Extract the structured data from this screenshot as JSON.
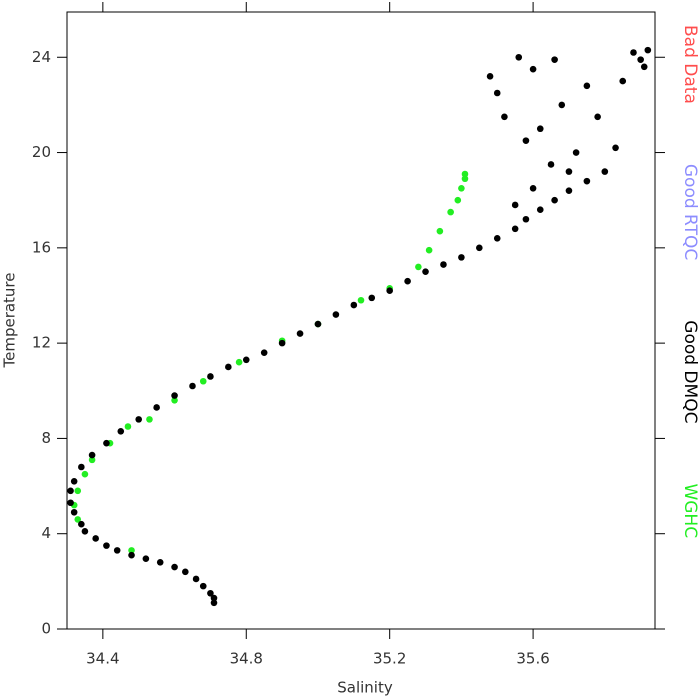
{
  "chart_data": {
    "type": "scatter",
    "x_label": "Salinity",
    "y_label": "Temperature",
    "xlim": [
      34.3,
      35.94
    ],
    "ylim": [
      0,
      25.9
    ],
    "xticks": [
      34.4,
      34.8,
      35.2,
      35.6
    ],
    "yticks": [
      0,
      4,
      8,
      12,
      16,
      20,
      24
    ],
    "legend": "right",
    "series": [
      {
        "name": "Bad Data",
        "color": "#ff4d4d",
        "x": [],
        "y": []
      },
      {
        "name": "Good RTQC",
        "color": "#8c8cff",
        "x": [],
        "y": []
      },
      {
        "name": "Good DMQC",
        "color": "#000000",
        "x": [
          34.71,
          34.71,
          34.7,
          34.68,
          34.66,
          34.63,
          34.6,
          34.56,
          34.52,
          34.48,
          34.44,
          34.41,
          34.38,
          34.35,
          34.34,
          34.32,
          34.31,
          34.31,
          34.32,
          34.34,
          34.37,
          34.41,
          34.45,
          34.5,
          34.55,
          34.6,
          34.65,
          34.7,
          34.75,
          34.8,
          34.85,
          34.9,
          34.95,
          35.0,
          35.05,
          35.1,
          35.15,
          35.2,
          35.25,
          35.3,
          35.35,
          35.4,
          35.45,
          35.5,
          35.55,
          35.58,
          35.62,
          35.66,
          35.7,
          35.75,
          35.8,
          35.6,
          35.55,
          35.65,
          35.58,
          35.52,
          35.48,
          35.5,
          35.62,
          35.68,
          35.72,
          35.78,
          35.83,
          35.66,
          35.6,
          35.56,
          35.7,
          35.85,
          35.9,
          35.92,
          35.88,
          35.91,
          35.75
        ],
        "y": [
          1.1,
          1.3,
          1.5,
          1.8,
          2.1,
          2.4,
          2.6,
          2.8,
          2.95,
          3.1,
          3.3,
          3.5,
          3.8,
          4.1,
          4.4,
          4.9,
          5.3,
          5.8,
          6.2,
          6.8,
          7.3,
          7.8,
          8.3,
          8.8,
          9.3,
          9.8,
          10.2,
          10.6,
          11.0,
          11.3,
          11.6,
          12.0,
          12.4,
          12.8,
          13.2,
          13.6,
          13.9,
          14.2,
          14.6,
          15.0,
          15.3,
          15.6,
          16.0,
          16.4,
          16.8,
          17.2,
          17.6,
          18.0,
          18.4,
          18.8,
          19.2,
          18.5,
          17.8,
          19.5,
          20.5,
          21.5,
          23.2,
          22.5,
          21.0,
          22.0,
          20.0,
          21.5,
          20.2,
          23.9,
          23.5,
          24.0,
          19.2,
          23.0,
          23.9,
          24.3,
          24.2,
          23.6,
          22.8
        ]
      },
      {
        "name": "WGHC",
        "color": "#22ee22",
        "x": [
          34.33,
          34.32,
          34.33,
          34.35,
          34.37,
          34.42,
          34.47,
          34.53,
          34.6,
          34.68,
          34.78,
          34.9,
          35.0,
          35.12,
          35.2,
          35.28,
          35.31,
          35.34,
          35.37,
          35.39,
          35.4,
          35.41,
          35.41,
          34.48
        ],
        "y": [
          4.6,
          5.2,
          5.8,
          6.5,
          7.1,
          7.8,
          8.5,
          8.8,
          9.6,
          10.4,
          11.2,
          12.1,
          12.8,
          13.8,
          14.3,
          15.2,
          15.9,
          16.7,
          17.5,
          18.0,
          18.5,
          18.9,
          19.1,
          3.3
        ]
      }
    ]
  }
}
